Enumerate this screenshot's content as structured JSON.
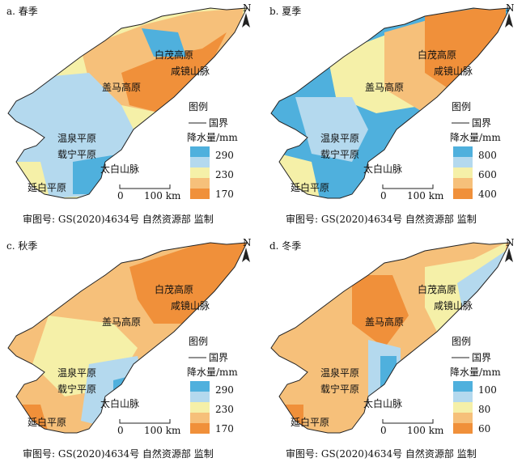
{
  "panels": [
    {
      "title": "a. 春季",
      "north": "N",
      "places": [
        "白茂高原",
        "咸镜山脉",
        "盖马高原",
        "温泉平原",
        "载宁平原",
        "太白山脉",
        "延白平原"
      ],
      "legend": {
        "title": "图例",
        "border": "国界",
        "unit": "降水量/mm",
        "values": [
          290,
          230,
          170
        ],
        "colors": [
          "#4fb0dd",
          "#b4d9ee",
          "#f5f0a8",
          "#f6c07a",
          "#f0903a"
        ]
      },
      "scale": {
        "zero": "0",
        "label": "100 km"
      },
      "footer": "审图号: GS(2020)4634号  自然资源部  监制"
    },
    {
      "title": "b. 夏季",
      "north": "N",
      "places": [
        "白茂高原",
        "咸镜山脉",
        "盖马高原",
        "温泉平原",
        "载宁平原",
        "太白山脉",
        "延白平原"
      ],
      "legend": {
        "title": "图例",
        "border": "国界",
        "unit": "降水量/mm",
        "values": [
          800,
          600,
          400
        ],
        "colors": [
          "#4fb0dd",
          "#b4d9ee",
          "#f5f0a8",
          "#f6c07a",
          "#f0903a"
        ]
      },
      "scale": {
        "zero": "0",
        "label": "100 km"
      },
      "footer": "审图号: GS(2020)4634号  自然资源部  监制"
    },
    {
      "title": "c. 秋季",
      "north": "N",
      "places": [
        "白茂高原",
        "咸镜山脉",
        "盖马高原",
        "温泉平原",
        "载宁平原",
        "太白山脉",
        "延白平原"
      ],
      "legend": {
        "title": "图例",
        "border": "国界",
        "unit": "降水量/mm",
        "values": [
          290,
          230,
          170
        ],
        "colors": [
          "#4fb0dd",
          "#b4d9ee",
          "#f5f0a8",
          "#f6c07a",
          "#f0903a"
        ]
      },
      "scale": {
        "zero": "0",
        "label": "100 km"
      },
      "footer": "审图号: GS(2020)4634号  自然资源部  监制"
    },
    {
      "title": "d. 冬季",
      "north": "N",
      "places": [
        "白茂高原",
        "咸镜山脉",
        "盖马高原",
        "温泉平原",
        "载宁平原",
        "太白山脉",
        "延白平原"
      ],
      "legend": {
        "title": "图例",
        "border": "国界",
        "unit": "降水量/mm",
        "values": [
          100,
          80,
          60
        ],
        "colors": [
          "#4fb0dd",
          "#b4d9ee",
          "#f5f0a8",
          "#f6c07a",
          "#f0903a"
        ]
      },
      "scale": {
        "zero": "0",
        "label": "100 km"
      },
      "footer": "审图号: GS(2020)4634号  自然资源部  监制"
    }
  ]
}
